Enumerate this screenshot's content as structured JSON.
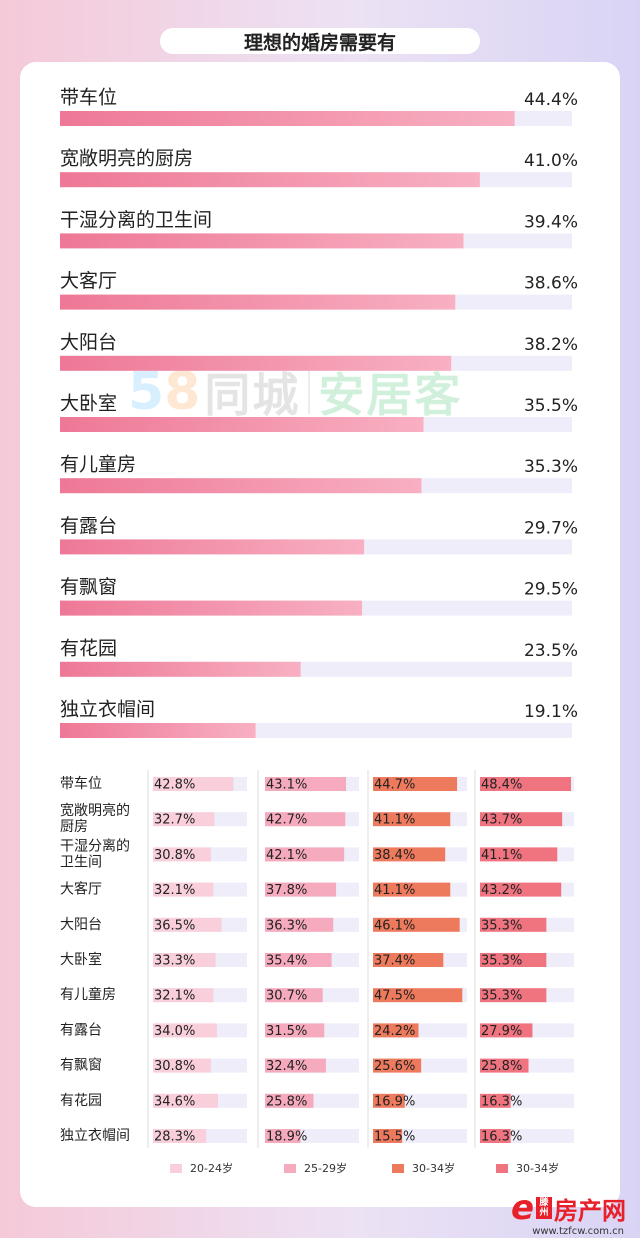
{
  "title": "理想的婚房需要有",
  "watermark": {
    "digit1": "5",
    "digit2": "8",
    "part1": "同城",
    "part2": "安居客"
  },
  "chart_data": [
    {
      "type": "bar",
      "title": "理想的婚房需要有",
      "categories": [
        "带车位",
        "宽敞明亮的厨房",
        "干湿分离的卫生间",
        "大客厅",
        "大阳台",
        "大卧室",
        "有儿童房",
        "有露台",
        "有飘窗",
        "有花园",
        "独立衣帽间"
      ],
      "values": [
        44.4,
        41.0,
        39.4,
        38.6,
        38.2,
        35.5,
        35.3,
        29.7,
        29.5,
        23.5,
        19.1
      ],
      "labels": [
        "44.4%",
        "41.0%",
        "39.4%",
        "38.6%",
        "38.2%",
        "35.5%",
        "35.3%",
        "29.7%",
        "29.5%",
        "23.5%",
        "19.1%"
      ],
      "xlim": [
        0,
        50
      ],
      "colors": {
        "bar_start": "#ee7896",
        "bar_end": "#f8b0c2",
        "track": "#efedfa"
      }
    },
    {
      "type": "bar",
      "categories": [
        "带车位",
        "宽敞明亮的\n厨房",
        "干湿分离的\n卫生间",
        "大客厅",
        "大阳台",
        "大卧室",
        "有儿童房",
        "有露台",
        "有飘窗",
        "有花园",
        "独立衣帽间"
      ],
      "xlim": [
        0,
        50
      ],
      "series": [
        {
          "name": "20-24岁",
          "color": "#f9cfdb",
          "values": [
            42.8,
            32.7,
            30.8,
            32.1,
            36.5,
            33.3,
            32.1,
            34.0,
            30.8,
            34.6,
            28.3
          ],
          "labels": [
            "42.8%",
            "32.7%",
            "30.8%",
            "32.1%",
            "36.5%",
            "33.3%",
            "32.1%",
            "34.0%",
            "30.8%",
            "34.6%",
            "28.3%"
          ]
        },
        {
          "name": "25-29岁",
          "color": "#f6aabd",
          "values": [
            43.1,
            42.7,
            42.1,
            37.8,
            36.3,
            35.4,
            30.7,
            31.5,
            32.4,
            25.8,
            18.9
          ],
          "labels": [
            "43.1%",
            "42.7%",
            "42.1%",
            "37.8%",
            "36.3%",
            "35.4%",
            "30.7%",
            "31.5%",
            "32.4%",
            "25.8%",
            "18.9%"
          ]
        },
        {
          "name": "30-34岁",
          "color": "#ee7a5e",
          "values": [
            44.7,
            41.1,
            38.4,
            41.1,
            46.1,
            37.4,
            47.5,
            24.2,
            25.6,
            16.9,
            15.5
          ],
          "labels": [
            "44.7%",
            "41.1%",
            "38.4%",
            "41.1%",
            "46.1%",
            "37.4%",
            "47.5%",
            "24.2%",
            "25.6%",
            "16.9%",
            "15.5%"
          ]
        },
        {
          "name": "30-34岁",
          "color": "#ef7480",
          "values": [
            48.4,
            43.7,
            41.1,
            43.2,
            35.3,
            35.3,
            35.3,
            27.9,
            25.8,
            16.3,
            16.3
          ],
          "labels": [
            "48.4%",
            "43.7%",
            "41.1%",
            "43.2%",
            "35.3%",
            "35.3%",
            "35.3%",
            "27.9%",
            "25.8%",
            "16.3%",
            "16.3%"
          ]
        }
      ],
      "colors": {
        "track": "#efedfa"
      }
    }
  ],
  "footer": {
    "tag": "滕州",
    "brand": "房产网",
    "url": "www.tzfcw.com.cn"
  }
}
